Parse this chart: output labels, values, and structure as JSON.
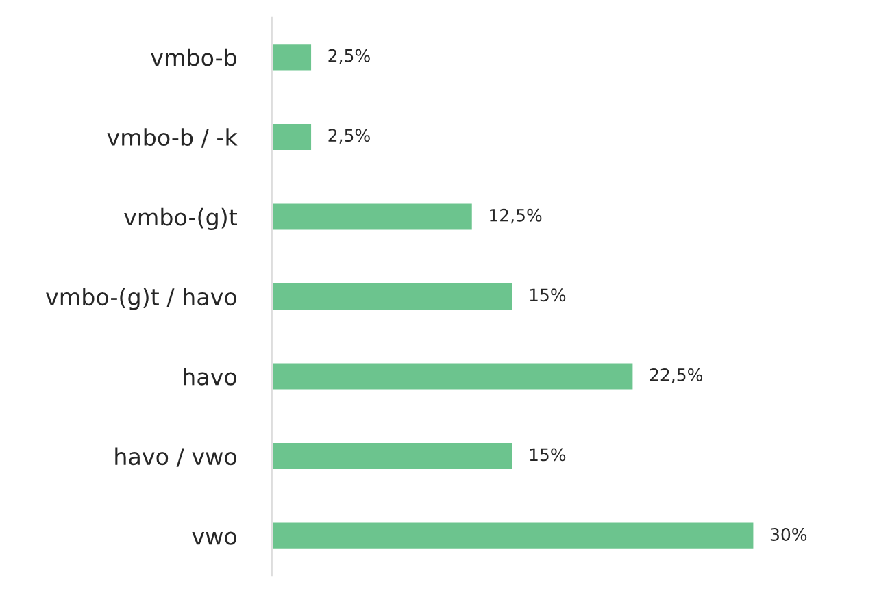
{
  "chart_data": {
    "type": "bar",
    "orientation": "horizontal",
    "categories": [
      "vmbo-b",
      "vmbo-b / -k",
      "vmbo-(g)t",
      "vmbo-(g)t / havo",
      "havo",
      "havo / vwo",
      "vwo"
    ],
    "values": [
      2.5,
      2.5,
      12.5,
      15,
      22.5,
      15,
      30
    ],
    "value_labels": [
      "2,5%",
      "2,5%",
      "12,5%",
      "15%",
      "22,5%",
      "15%",
      "30%"
    ],
    "color": "#6cc48e",
    "grid": false,
    "legend": false
  }
}
